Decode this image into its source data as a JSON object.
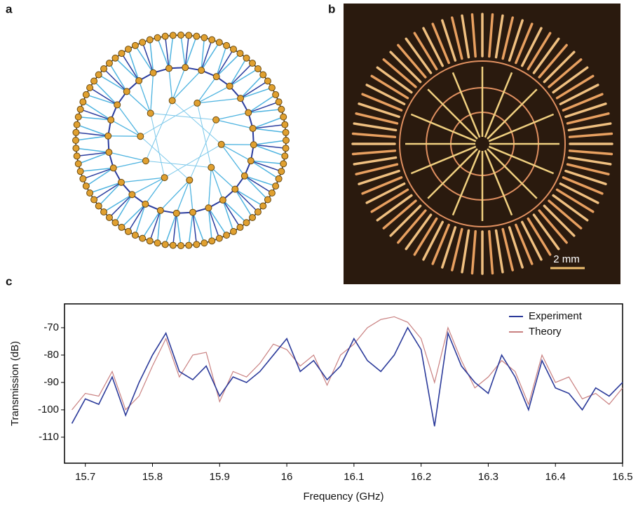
{
  "panel_labels": [
    "a",
    "b",
    "c"
  ],
  "scale_bar": "2 mm",
  "chart_data": {
    "type": "line",
    "x_label": "Frequency (GHz)",
    "y_label": "Transmission (dB)",
    "x": [
      15.68,
      15.7,
      15.72,
      15.74,
      15.76,
      15.78,
      15.8,
      15.82,
      15.84,
      15.86,
      15.88,
      15.9,
      15.92,
      15.94,
      15.96,
      15.98,
      16.0,
      16.02,
      16.04,
      16.06,
      16.08,
      16.1,
      16.12,
      16.14,
      16.16,
      16.18,
      16.2,
      16.22,
      16.24,
      16.26,
      16.28,
      16.3,
      16.32,
      16.34,
      16.36,
      16.38,
      16.4,
      16.42,
      16.44,
      16.46,
      16.48,
      16.5
    ],
    "series": [
      {
        "name": "Experiment",
        "color": "#2b3a9a",
        "values": [
          -105,
          -96,
          -98,
          -88,
          -102,
          -90,
          -80,
          -72,
          -86,
          -89,
          -84,
          -95,
          -88,
          -90,
          -86,
          -80,
          -74,
          -86,
          -82,
          -89,
          -84,
          -74,
          -82,
          -86,
          -80,
          -70,
          -78,
          -106,
          -72,
          -84,
          -90,
          -94,
          -80,
          -88,
          -100,
          -82,
          -92,
          -94,
          -100,
          -92,
          -95,
          -90
        ]
      },
      {
        "name": "Theory",
        "color": "#c98080",
        "values": [
          -100,
          -94,
          -95,
          -86,
          -100,
          -95,
          -84,
          -74,
          -88,
          -80,
          -79,
          -97,
          -86,
          -88,
          -83,
          -76,
          -78,
          -84,
          -80,
          -91,
          -80,
          -76,
          -70,
          -67,
          -66,
          -68,
          -74,
          -90,
          -70,
          -82,
          -92,
          -88,
          -82,
          -86,
          -98,
          -80,
          -90,
          -88,
          -96,
          -94,
          -98,
          -92
        ]
      }
    ],
    "xlim": [
      15.669,
      16.5
    ],
    "ylim": [
      -119.5,
      -61.3
    ],
    "xticks": [
      15.7,
      15.8,
      15.9,
      16.0,
      16.1,
      16.2,
      16.3,
      16.4,
      16.5
    ],
    "yticks": [
      -70,
      -80,
      -90,
      -100,
      -110
    ],
    "legend": "upper-right"
  }
}
